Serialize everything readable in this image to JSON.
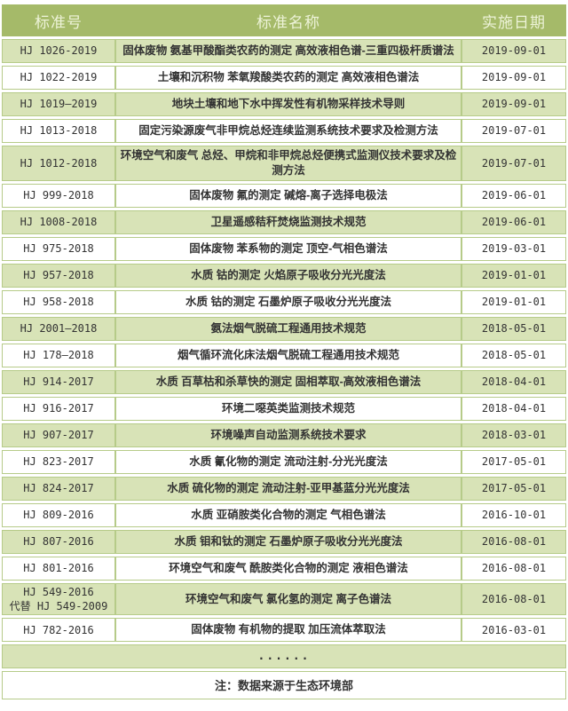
{
  "chart_data": {
    "type": "table",
    "title": "",
    "columns": [
      "标准号",
      "标准名称",
      "实施日期"
    ],
    "rows": [
      {
        "no": "HJ 1026-2019",
        "name": "固体废物 氨基甲酸酯类农药的测定 高效液相色谱-三重四极杆质谱法",
        "date": "2019-09-01"
      },
      {
        "no": "HJ 1022-2019",
        "name": "土壤和沉积物 苯氧羧酸类农药的测定 高效液相色谱法",
        "date": "2019-09-01"
      },
      {
        "no": "HJ 1019—2019",
        "name": "地块土壤和地下水中挥发性有机物采样技术导则",
        "date": "2019-09-01"
      },
      {
        "no": "HJ 1013-2018",
        "name": "固定污染源废气非甲烷总烃连续监测系统技术要求及检测方法",
        "date": "2019-07-01"
      },
      {
        "no": "HJ 1012-2018",
        "name": "环境空气和废气 总烃、甲烷和非甲烷总烃便携式监测仪技术要求及检测方法",
        "date": "2019-07-01"
      },
      {
        "no": "HJ 999-2018",
        "name": "固体废物 氟的测定 碱熔-离子选择电极法",
        "date": "2019-06-01"
      },
      {
        "no": "HJ 1008-2018",
        "name": "卫星遥感秸秆焚烧监测技术规范",
        "date": "2019-06-01"
      },
      {
        "no": "HJ 975-2018",
        "name": "固体废物 苯系物的测定 顶空-气相色谱法",
        "date": "2019-03-01"
      },
      {
        "no": "HJ 957-2018",
        "name": "水质 钴的测定 火焰原子吸收分光光度法",
        "date": "2019-01-01"
      },
      {
        "no": "HJ 958-2018",
        "name": "水质 钴的测定 石墨炉原子吸收分光光度法",
        "date": "2019-01-01"
      },
      {
        "no": "HJ 2001—2018",
        "name": "氨法烟气脱硫工程通用技术规范",
        "date": "2018-05-01"
      },
      {
        "no": "HJ 178—2018",
        "name": "烟气循环流化床法烟气脱硫工程通用技术规范",
        "date": "2018-05-01"
      },
      {
        "no": "HJ 914-2017",
        "name": "水质 百草枯和杀草快的测定 固相萃取-高效液相色谱法",
        "date": "2018-04-01"
      },
      {
        "no": "HJ 916-2017",
        "name": "环境二噁英类监测技术规范",
        "date": "2018-04-01"
      },
      {
        "no": "HJ 907-2017",
        "name": "环境噪声自动监测系统技术要求",
        "date": "2018-03-01"
      },
      {
        "no": "HJ 823-2017",
        "name": "水质 氰化物的测定 流动注射-分光光度法",
        "date": "2017-05-01"
      },
      {
        "no": "HJ 824-2017",
        "name": "水质 硫化物的测定 流动注射-亚甲基蓝分光光度法",
        "date": "2017-05-01"
      },
      {
        "no": "HJ 809-2016",
        "name": "水质 亚硝胺类化合物的测定 气相色谱法",
        "date": "2016-10-01"
      },
      {
        "no": "HJ 807-2016",
        "name": "水质 钼和钛的测定 石墨炉原子吸收分光光度法",
        "date": "2016-08-01"
      },
      {
        "no": "HJ 801-2016",
        "name": "环境空气和废气 酰胺类化合物的测定 液相色谱法",
        "date": "2016-08-01"
      },
      {
        "no": "HJ 549-2016\n代替 HJ 549-2009",
        "name": "环境空气和废气 氯化氢的测定 离子色谱法",
        "date": "2016-08-01"
      },
      {
        "no": "HJ 782-2016",
        "name": "固体废物 有机物的提取 加压流体萃取法",
        "date": "2016-03-01"
      }
    ],
    "ellipsis": "......",
    "note": "注：数据来源于生态环境部",
    "layout": {
      "header_position": "top",
      "grid": true,
      "row_striping": "odd-green"
    },
    "colors": {
      "header_bg": "#a5ba69",
      "header_text": "#edf3d8",
      "row_alt_bg": "#d8e3b7",
      "row_bg": "#ffffff",
      "border": "#b6cb89",
      "text": "#333333"
    }
  }
}
